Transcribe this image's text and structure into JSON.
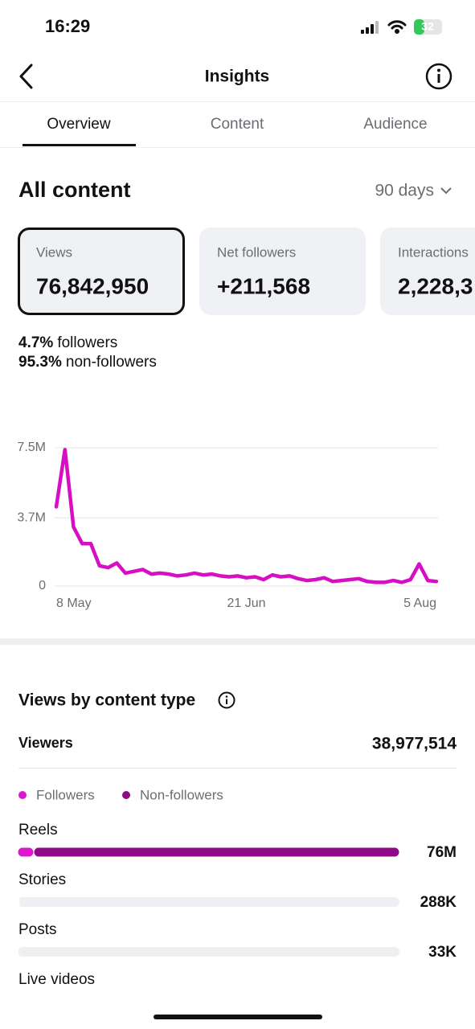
{
  "status_bar": {
    "time": "16:29",
    "battery": "32"
  },
  "header": {
    "title": "Insights"
  },
  "tabs": [
    "Overview",
    "Content",
    "Audience"
  ],
  "section": {
    "title": "All content",
    "period": "90 days"
  },
  "cards": [
    {
      "label": "Views",
      "value": "76,842,950"
    },
    {
      "label": "Net followers",
      "value": "+211,568"
    },
    {
      "label": "Interactions",
      "value": "2,228,3"
    }
  ],
  "split": [
    {
      "value": "4.7%",
      "label": "followers"
    },
    {
      "value": "95.3%",
      "label": "non-followers"
    }
  ],
  "viewers": {
    "label": "Viewers",
    "value": "38,977,514"
  },
  "chart_data": [
    {
      "type": "line",
      "color": "#d60fc4",
      "categories": [
        "8 May",
        null,
        null,
        null,
        null,
        null,
        null,
        null,
        null,
        null,
        null,
        null,
        null,
        null,
        null,
        null,
        null,
        null,
        null,
        null,
        null,
        null,
        "21 Jun",
        null,
        null,
        null,
        null,
        null,
        null,
        null,
        null,
        null,
        null,
        null,
        null,
        null,
        null,
        null,
        null,
        null,
        null,
        null,
        null,
        null,
        "5 Aug"
      ],
      "values": [
        4300000,
        7400000,
        3200000,
        2300000,
        2300000,
        1100000,
        1000000,
        1250000,
        700000,
        800000,
        900000,
        650000,
        700000,
        650000,
        550000,
        600000,
        700000,
        600000,
        650000,
        550000,
        500000,
        550000,
        450000,
        500000,
        350000,
        600000,
        500000,
        550000,
        400000,
        300000,
        350000,
        450000,
        250000,
        300000,
        350000,
        400000,
        250000,
        200000,
        200000,
        300000,
        200000,
        350000,
        1200000,
        300000,
        250000
      ],
      "ylim": [
        0,
        7500000
      ],
      "yticks": [
        0,
        {
          "value": 3700000,
          "label": "3.7M"
        },
        {
          "value": 7500000,
          "label": "7.5M"
        }
      ],
      "grid": true
    },
    {
      "type": "hbar",
      "stacked": true,
      "title": "Views by content type",
      "categories": [
        "Reels",
        "Stories",
        "Posts",
        "Live videos"
      ],
      "series": [
        {
          "name": "Followers",
          "color": "#dc18cf",
          "values": [
            3200000,
            150000,
            15000,
            null
          ]
        },
        {
          "name": "Non-followers",
          "color": "#8f0a86",
          "values": [
            72800000,
            138000,
            18000,
            null
          ]
        }
      ],
      "value_labels": [
        "76M",
        "288K",
        "33K",
        null
      ],
      "xlim": [
        0,
        76000000
      ]
    }
  ]
}
